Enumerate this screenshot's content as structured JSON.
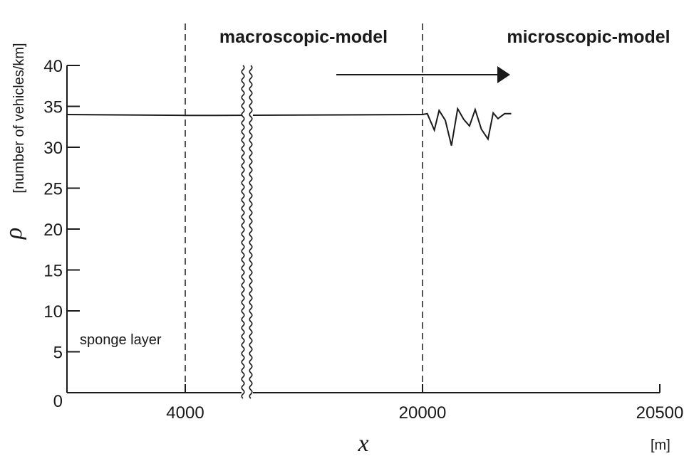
{
  "chart_data": {
    "type": "line",
    "title": "",
    "xlabel": "x",
    "x_unit": "[m]",
    "ylabel_symbol": "ρ",
    "ylabel": "[number of vehicles/km]",
    "ylim": [
      0,
      40
    ],
    "y_ticks": [
      0,
      5,
      10,
      15,
      20,
      25,
      30,
      35,
      40
    ],
    "x_tick_labels": [
      "4000",
      "20000",
      "20500"
    ],
    "region_labels": {
      "macroscopic": "macroscopic-model",
      "microscopic": "microscopic-model",
      "sponge": "sponge layer"
    },
    "segments": [
      {
        "name": "macroscopic (x 0–4000 m)",
        "x_domain": [
          0,
          4000
        ],
        "x": [
          0,
          4000
        ],
        "y": [
          34.0,
          33.9
        ]
      },
      {
        "name": "macroscopic (x 4000–20000 m, axis break)",
        "x_domain": [
          4000,
          20000
        ],
        "x": [
          4000,
          6000,
          20000
        ],
        "y": [
          33.9,
          33.9,
          34.0
        ]
      },
      {
        "name": "microscopic (x 20000–20500 m)",
        "x_domain": [
          20000,
          20500
        ],
        "x": [
          20000,
          20010,
          20025,
          20035,
          20048,
          20061,
          20074,
          20087,
          20099,
          20111,
          20124,
          20138,
          20149,
          20159,
          20173,
          20187
        ],
        "y": [
          34.0,
          34.1,
          32.1,
          34.5,
          33.3,
          30.2,
          34.7,
          33.4,
          32.6,
          34.6,
          32.2,
          31.0,
          34.2,
          33.5,
          34.1,
          34.1
        ]
      }
    ],
    "axis_break": "wavy double line between 4000 and 20000",
    "arrow_direction": "right"
  }
}
